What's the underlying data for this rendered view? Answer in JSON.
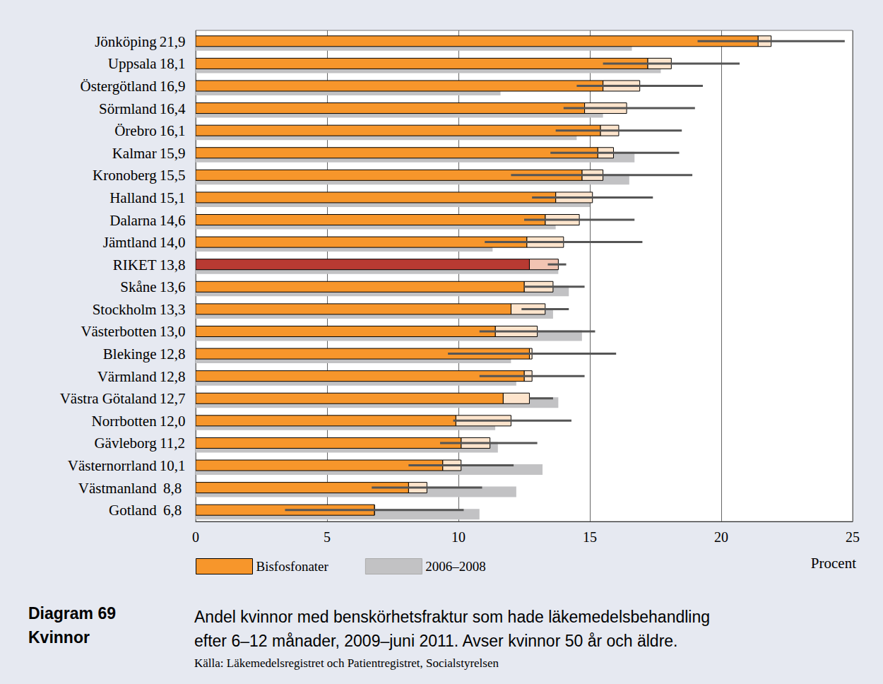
{
  "chart_data": {
    "type": "bar",
    "orientation": "horizontal",
    "title": "Diagram 69",
    "subtitle": "Kvinnor",
    "caption": [
      "Andel kvinnor med benskörhetsfraktur som hade läkemedelsbehandling",
      "efter 6–12 månader, 2009–juni 2011. Avser kvinnor 50 år och äldre."
    ],
    "source": "Källa: Läkemedelsregistret och Patientregistret, Socialstyrelsen",
    "x_label": "Procent",
    "categories": [
      "Jönköping",
      "Uppsala",
      "Östergötland",
      "Sörmland",
      "Örebro",
      "Kalmar",
      "Kronoberg",
      "Halland",
      "Dalarna",
      "Jämtland",
      "RIKET",
      "Skåne",
      "Stockholm",
      "Västerbotten",
      "Blekinge",
      "Värmland",
      "Västra Götaland",
      "Norrbotten",
      "Gävleborg",
      "Västernorrland",
      "Västmanland",
      "Gotland"
    ],
    "totals": [
      21.9,
      18.1,
      16.9,
      16.4,
      16.1,
      15.9,
      15.5,
      15.1,
      14.6,
      14.0,
      13.8,
      13.6,
      13.3,
      13.0,
      12.8,
      12.8,
      12.7,
      12.0,
      11.2,
      10.1,
      8.8,
      6.8
    ],
    "total_labels": [
      "21,9",
      "18,1",
      "16,9",
      "16,4",
      "16,1",
      "15,9",
      "15,5",
      "15,1",
      "14,6",
      "14,0",
      "13,8",
      "13,6",
      "13,3",
      "13,0",
      "12,8",
      "12,8",
      "12,7",
      "12,0",
      "11,2",
      "10,1",
      "8,8",
      "6,8"
    ],
    "series": [
      {
        "name": "Bisfosfonater",
        "color": "#f7962b",
        "colors": [
          "#f7962b",
          "#f7962b",
          "#f7962b",
          "#f7962b",
          "#f7962b",
          "#f7962b",
          "#f7962b",
          "#f7962b",
          "#f7962b",
          "#f7962b",
          "#b83a32",
          "#f7962b",
          "#f7962b",
          "#f7962b",
          "#f7962b",
          "#f7962b",
          "#f7962b",
          "#f7962b",
          "#f7962b",
          "#f7962b",
          "#f7962b",
          "#f7962b"
        ],
        "values": [
          21.4,
          17.2,
          15.5,
          14.8,
          15.4,
          15.3,
          14.7,
          13.7,
          13.3,
          12.6,
          12.7,
          12.5,
          12.0,
          11.4,
          12.7,
          12.5,
          11.7,
          9.9,
          10.1,
          9.4,
          8.1,
          6.8
        ]
      },
      {
        "name": "2006–2008",
        "color": "#c2c2c4",
        "values": [
          16.6,
          17.7,
          11.6,
          15.5,
          14.5,
          16.7,
          16.5,
          15.0,
          13.7,
          11.3,
          13.8,
          14.2,
          13.6,
          14.7,
          12.0,
          12.2,
          13.8,
          11.4,
          11.5,
          13.2,
          12.2,
          10.8
        ]
      }
    ],
    "error_bars": {
      "low": [
        19.1,
        15.5,
        14.5,
        14.0,
        13.7,
        13.5,
        12.0,
        12.8,
        12.5,
        11.0,
        13.4,
        12.5,
        12.4,
        10.8,
        9.6,
        10.8,
        12.7,
        9.8,
        9.3,
        8.1,
        6.7,
        3.4
      ],
      "high": [
        24.7,
        20.7,
        19.3,
        19.0,
        18.5,
        18.4,
        18.9,
        17.4,
        16.7,
        17.0,
        14.1,
        14.8,
        14.2,
        15.2,
        16.0,
        14.8,
        13.6,
        14.3,
        13.0,
        12.1,
        10.9,
        10.2
      ]
    },
    "xlim": [
      0,
      25
    ],
    "xticks": [
      0,
      5,
      10,
      15,
      20,
      25
    ],
    "grid": true,
    "legend": "bottom"
  }
}
